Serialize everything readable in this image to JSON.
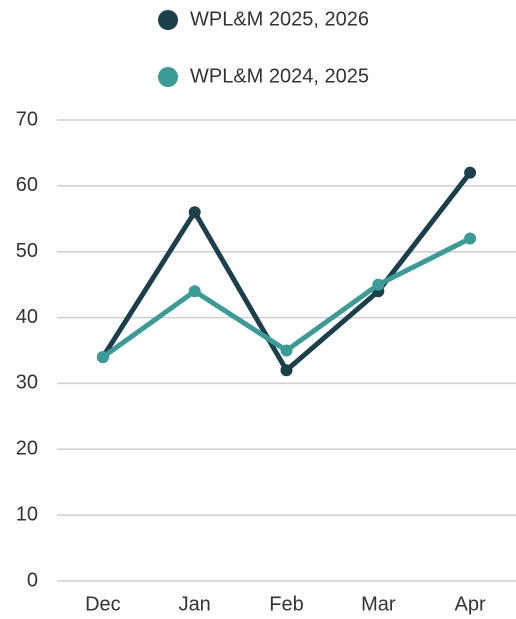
{
  "chart_data": {
    "type": "line",
    "categories": [
      "Dec",
      "Jan",
      "Feb",
      "Mar",
      "Apr"
    ],
    "series": [
      {
        "name": "WPL&M 2025, 2026",
        "color": "#1b3f4b",
        "values": [
          34,
          56,
          32,
          44,
          62
        ]
      },
      {
        "name": "WPL&M 2024, 2025",
        "color": "#3a9b97",
        "values": [
          34,
          44,
          35,
          45,
          52
        ]
      }
    ],
    "ylim": [
      0,
      70
    ],
    "yticks": [
      0,
      10,
      20,
      30,
      40,
      50,
      60,
      70
    ],
    "grid": true
  }
}
